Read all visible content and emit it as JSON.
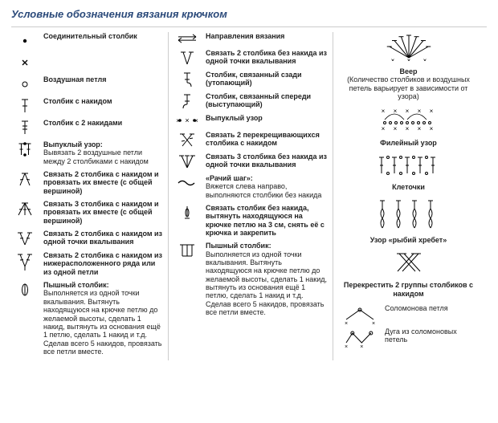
{
  "title": "Условные обозначения вязания крючком",
  "colors": {
    "title": "#2b4a7a",
    "border": "#cccccc",
    "text": "#222222",
    "stroke": "#000000"
  },
  "col1": [
    {
      "sym": "dot",
      "label": "Соединительный столбик"
    },
    {
      "sym": "x",
      "label": ""
    },
    {
      "sym": "circle",
      "label": "Воздушная петля"
    },
    {
      "sym": "t1",
      "label": "Столбик с накидом"
    },
    {
      "sym": "t2",
      "label": "Столбик с 2 накидами"
    },
    {
      "sym": "relief",
      "label": "Выпуклый узор:",
      "sub": "Вывязать 2 воздушные петли между 2 столбиками с накидом"
    },
    {
      "sym": "dec2top",
      "label": "Связать 2 столбика с накидом и провязать их вместе (с общей вершиной)"
    },
    {
      "sym": "dec3top",
      "label": "Связать 3 столбика с накидом и провязать их вместе (с общей вершиной)"
    },
    {
      "sym": "fan2",
      "label": "Связать 2 столбика с накидом из одной точки вкалывания"
    },
    {
      "sym": "fan2b",
      "label": "Связать 2 столбика с накидом из нижерасположенного ряда или из одной петли"
    },
    {
      "sym": "puff",
      "label": "Пышный столбик:",
      "sub": "Выполняется из одной точки вкалывания. Вытянуть находящуюся на крючке петлю до желаемой высоты, сделать 1 накид, вытянуть из основания ещё 1 петлю, сделать 1 накид и т.д. Сделав всего 5 накидов, провязать все петли вместе."
    }
  ],
  "col2": [
    {
      "sym": "arrows",
      "label": "Направления вязания"
    },
    {
      "sym": "v2sc",
      "label": "Связать 2 столбика без накида из одной точки вкалывания"
    },
    {
      "sym": "back",
      "label": "Столбик, связанный сзади (утопающий)"
    },
    {
      "sym": "front",
      "label": "Столбик, связанный спереди (выступающий)"
    },
    {
      "sym": "relief2",
      "label": "Выпуклый узор"
    },
    {
      "sym": "cross2",
      "label": "Связать 2 перекрещивающихся столбика с накидом"
    },
    {
      "sym": "fan3sc",
      "label": "Связать 3 столбика без накида из одной точки вкалывания"
    },
    {
      "sym": "wave",
      "label": "«Рачий шаг»:",
      "sub": "Вяжется слева направо, выполняются столбики без накида"
    },
    {
      "sym": "long",
      "label": "Связать столбик без накида, вытянуть находящуюся на крючке петлю на 3 см, снять её с крючка и закрепить"
    },
    {
      "sym": "puff2",
      "label": "Пышный столбик:",
      "sub": "Выполняется из одной точки вкалывания. Вытянуть находящуюся на крючке петлю до желаемой высоты, сделать 1 накид, вытянуть из основания ещё 1 петлю, сделать 1 накид и т.д. Сделав всего 5 накидов, провязать все петли вместе."
    }
  ],
  "col3": [
    {
      "sym": "veer",
      "head": "Веер",
      "sub": "(Количество столбиков и воздушных петель варьирует в зависимости от узора)"
    },
    {
      "sym": "filet",
      "head": "Филейный узор"
    },
    {
      "sym": "kletki",
      "head": "Клеточки"
    },
    {
      "sym": "fish",
      "head": "Узор «рыбий хребет»"
    },
    {
      "sym": "cross2g",
      "head": "Перекрестить 2 группы столбиков с накидом"
    },
    {
      "sym": "solomon",
      "head": "Соломонова петля",
      "layout": "row"
    },
    {
      "sym": "solarc",
      "head": "Дуга из соломоновых петель",
      "layout": "row"
    }
  ]
}
